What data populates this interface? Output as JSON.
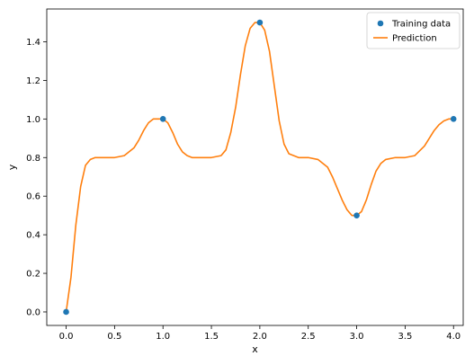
{
  "chart_data": {
    "type": "line",
    "xlabel": "x",
    "ylabel": "y",
    "xlim": [
      -0.2,
      4.1
    ],
    "ylim": [
      -0.07,
      1.57
    ],
    "xticks": [
      "0.0",
      "0.5",
      "1.0",
      "1.5",
      "2.0",
      "2.5",
      "3.0",
      "3.5",
      "4.0"
    ],
    "yticks": [
      "0.0",
      "0.2",
      "0.4",
      "0.6",
      "0.8",
      "1.0",
      "1.2",
      "1.4"
    ],
    "grid": false,
    "legend_position": "top-right",
    "series": [
      {
        "name": "Training data",
        "kind": "scatter",
        "color": "#1f77b4",
        "x": [
          0,
          1,
          2,
          3,
          4
        ],
        "y": [
          0.0,
          1.0,
          1.5,
          0.5,
          1.0
        ]
      },
      {
        "name": "Prediction",
        "kind": "line",
        "color": "#ff7f0e",
        "x": [
          0.0,
          0.05,
          0.1,
          0.15,
          0.2,
          0.25,
          0.3,
          0.35,
          0.4,
          0.5,
          0.6,
          0.7,
          0.75,
          0.8,
          0.85,
          0.9,
          0.95,
          1.0,
          1.05,
          1.1,
          1.15,
          1.2,
          1.25,
          1.3,
          1.4,
          1.5,
          1.6,
          1.65,
          1.7,
          1.75,
          1.8,
          1.85,
          1.9,
          1.95,
          2.0,
          2.05,
          2.1,
          2.15,
          2.2,
          2.25,
          2.3,
          2.4,
          2.5,
          2.6,
          2.7,
          2.75,
          2.8,
          2.85,
          2.9,
          2.95,
          3.0,
          3.05,
          3.1,
          3.15,
          3.2,
          3.25,
          3.3,
          3.4,
          3.5,
          3.6,
          3.7,
          3.75,
          3.8,
          3.85,
          3.9,
          3.95,
          4.0
        ],
        "y": [
          0.0,
          0.18,
          0.45,
          0.65,
          0.76,
          0.79,
          0.8,
          0.8,
          0.8,
          0.8,
          0.81,
          0.85,
          0.89,
          0.94,
          0.98,
          1.0,
          1.0,
          1.0,
          0.98,
          0.93,
          0.87,
          0.83,
          0.81,
          0.8,
          0.8,
          0.8,
          0.81,
          0.84,
          0.93,
          1.06,
          1.23,
          1.38,
          1.47,
          1.5,
          1.5,
          1.46,
          1.35,
          1.17,
          0.99,
          0.87,
          0.82,
          0.8,
          0.8,
          0.79,
          0.75,
          0.7,
          0.64,
          0.58,
          0.53,
          0.5,
          0.5,
          0.52,
          0.58,
          0.66,
          0.73,
          0.77,
          0.79,
          0.8,
          0.8,
          0.81,
          0.86,
          0.9,
          0.94,
          0.97,
          0.99,
          1.0,
          1.0
        ]
      }
    ]
  }
}
